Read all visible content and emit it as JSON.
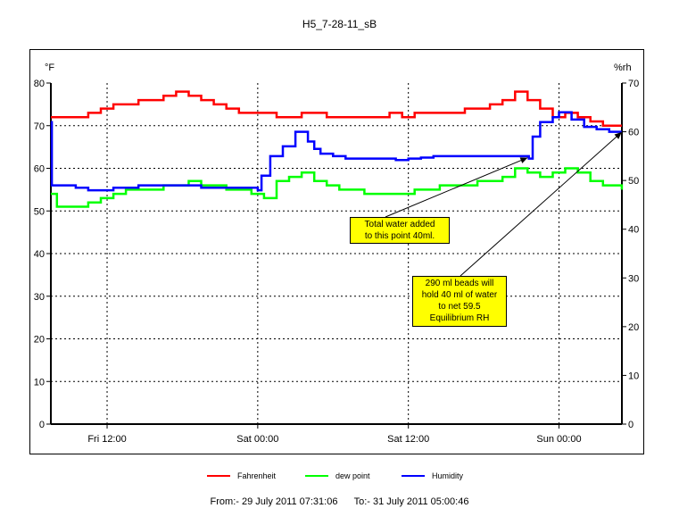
{
  "chart_data": {
    "type": "line",
    "title": "H5_7-28-11_sB",
    "ylabel_left": "°F",
    "ylabel_right": "%rh",
    "ylim_left": [
      0,
      80
    ],
    "ylim_right": [
      0,
      70
    ],
    "yticks_left": [
      0,
      10,
      20,
      30,
      40,
      50,
      60,
      70,
      80
    ],
    "yticks_right": [
      0,
      10,
      20,
      30,
      40,
      50,
      60,
      70
    ],
    "x_unit": "hours since 2011-07-29 00:00",
    "xlim": [
      7.52,
      53.01
    ],
    "xticks": [
      {
        "label": "Fri 12:00",
        "x": 12
      },
      {
        "label": "Sat 00:00",
        "x": 24
      },
      {
        "label": "Sat 12:00",
        "x": 36
      },
      {
        "label": "Sun 00:00",
        "x": 48
      }
    ],
    "grid": true,
    "legend_position": "bottom",
    "series": [
      {
        "name": "Fahrenheit",
        "color": "#ff0000",
        "axis": "left",
        "x": [
          7.52,
          9.5,
          10.5,
          11.5,
          12.5,
          13.5,
          14.5,
          15.5,
          16.5,
          17.5,
          18.5,
          19.5,
          20.5,
          21.5,
          22.5,
          23.5,
          24.5,
          25.5,
          26.5,
          27.5,
          28.5,
          29.5,
          30.5,
          31.5,
          32.5,
          33.5,
          34.5,
          35.5,
          36.5,
          37.5,
          38.5,
          39.5,
          40.5,
          41.5,
          42.5,
          43.5,
          44.5,
          45.5,
          46.5,
          47.5,
          48.5,
          49.5,
          50.5,
          51.5,
          53.0
        ],
        "y": [
          72,
          72,
          73,
          74,
          75,
          75,
          76,
          76,
          77,
          78,
          77,
          76,
          75,
          74,
          73,
          73,
          73,
          72,
          72,
          73,
          73,
          72,
          72,
          72,
          72,
          72,
          73,
          72,
          73,
          73,
          73,
          73,
          74,
          74,
          75,
          76,
          78,
          76,
          74,
          72,
          73,
          72,
          71,
          70,
          70
        ]
      },
      {
        "name": "dew point",
        "color": "#00ff00",
        "axis": "left",
        "x": [
          7.52,
          8.0,
          9.5,
          10.5,
          11.5,
          12.5,
          13.5,
          14.5,
          15.5,
          16.5,
          17.5,
          18.5,
          19.5,
          20.5,
          21.5,
          22.5,
          23.5,
          24.5,
          25.5,
          26.5,
          27.5,
          28.5,
          29.5,
          30.5,
          31.5,
          32.5,
          33.5,
          34.5,
          35.5,
          36.5,
          37.5,
          38.5,
          39.5,
          40.5,
          41.5,
          42.5,
          43.5,
          44.5,
          45.5,
          46.5,
          47.5,
          48.5,
          49.5,
          50.5,
          51.5,
          53.0
        ],
        "y": [
          54,
          51,
          51,
          52,
          53,
          54,
          55,
          55,
          55,
          56,
          56,
          57,
          56,
          56,
          55,
          55,
          54,
          53,
          57,
          58,
          59,
          57,
          56,
          55,
          55,
          54,
          54,
          54,
          54,
          55,
          55,
          56,
          56,
          56,
          57,
          57,
          58,
          60,
          59,
          58,
          59,
          60,
          59,
          57,
          56,
          55
        ]
      },
      {
        "name": "Humidity",
        "color": "#0000ff",
        "axis": "right",
        "x": [
          7.52,
          7.6,
          8.0,
          9.5,
          10.5,
          11.5,
          12.5,
          13.5,
          14.5,
          15.5,
          16.5,
          17.5,
          18.5,
          19.5,
          20.5,
          21.5,
          22.5,
          23.5,
          24.0,
          24.3,
          25.0,
          26.0,
          27.0,
          28.0,
          28.5,
          29.0,
          30.0,
          31.0,
          32.0,
          33.0,
          34.0,
          35.0,
          36.0,
          37.0,
          38.0,
          39.0,
          40.0,
          41.0,
          42.0,
          43.0,
          44.0,
          45.0,
          45.6,
          45.9,
          46.5,
          47.5,
          48.0,
          48.5,
          49.0,
          50.0,
          51.0,
          52.0,
          53.0
        ],
        "y": [
          62,
          49,
          49,
          48.5,
          48,
          48,
          48.5,
          48.5,
          49,
          49,
          49,
          49,
          49,
          48.5,
          48.5,
          48.5,
          48.5,
          48.5,
          48,
          51,
          55,
          57,
          60,
          58,
          56.5,
          55.5,
          55,
          54.5,
          54.5,
          54.5,
          54.5,
          54.2,
          54.5,
          54.7,
          55,
          55,
          55,
          55,
          55,
          55,
          55,
          55,
          54.5,
          59,
          62,
          63,
          64,
          64,
          62.5,
          61,
          60.5,
          60,
          60
        ]
      }
    ],
    "annotations": [
      {
        "text_lines": [
          "Total water added",
          "to this point 40ml."
        ],
        "target_x": 45.5,
        "target_y_left": 62.5
      },
      {
        "text_lines": [
          "290 ml beads will",
          "hold 40 ml of water",
          "to net 59.5",
          "Equilibrium RH"
        ],
        "target_x": 53.0,
        "target_y_left": 68.5
      }
    ]
  },
  "footer": {
    "from_label": "From:-",
    "from_value": "29 July 2011 07:31:06",
    "to_label": "To:-",
    "to_value": "31 July 2011 05:00:46"
  }
}
